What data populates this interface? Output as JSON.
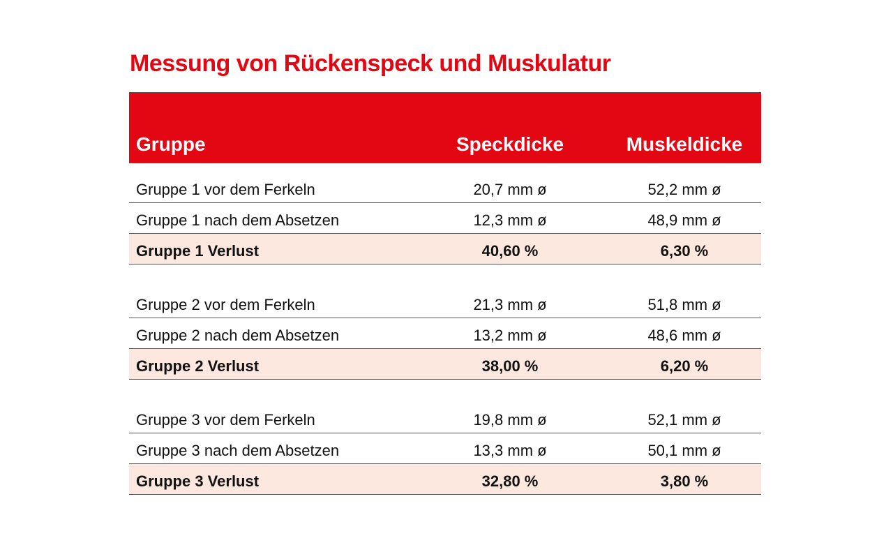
{
  "title": "Messung von Rückenspeck und Muskulatur",
  "colors": {
    "accent": "#e30613",
    "highlight_row": "#fde8e0"
  },
  "columns": [
    "Gruppe",
    "Speckdicke",
    "Muskeldicke"
  ],
  "groups": [
    {
      "rows": [
        {
          "label": "Gruppe 1 vor dem Ferkeln",
          "speck": "20,7 mm ø",
          "muskel": "52,2 mm ø"
        },
        {
          "label": "Gruppe 1 nach dem Absetzen",
          "speck": "12,3 mm ø",
          "muskel": "48,9 mm ø"
        },
        {
          "label": "Gruppe 1 Verlust",
          "speck": "40,60 %",
          "muskel": "6,30 %",
          "highlight": true
        }
      ]
    },
    {
      "rows": [
        {
          "label": "Gruppe 2 vor dem Ferkeln",
          "speck": "21,3 mm ø",
          "muskel": "51,8 mm ø"
        },
        {
          "label": "Gruppe 2 nach dem Absetzen",
          "speck": "13,2 mm ø",
          "muskel": "48,6 mm ø"
        },
        {
          "label": "Gruppe 2 Verlust",
          "speck": "38,00 %",
          "muskel": "6,20 %",
          "highlight": true
        }
      ]
    },
    {
      "rows": [
        {
          "label": "Gruppe 3 vor dem Ferkeln",
          "speck": "19,8 mm ø",
          "muskel": "52,1 mm ø"
        },
        {
          "label": "Gruppe 3 nach dem Absetzen",
          "speck": "13,3 mm ø",
          "muskel": "50,1 mm ø"
        },
        {
          "label": "Gruppe 3 Verlust",
          "speck": "32,80 %",
          "muskel": "3,80 %",
          "highlight": true
        }
      ]
    }
  ]
}
